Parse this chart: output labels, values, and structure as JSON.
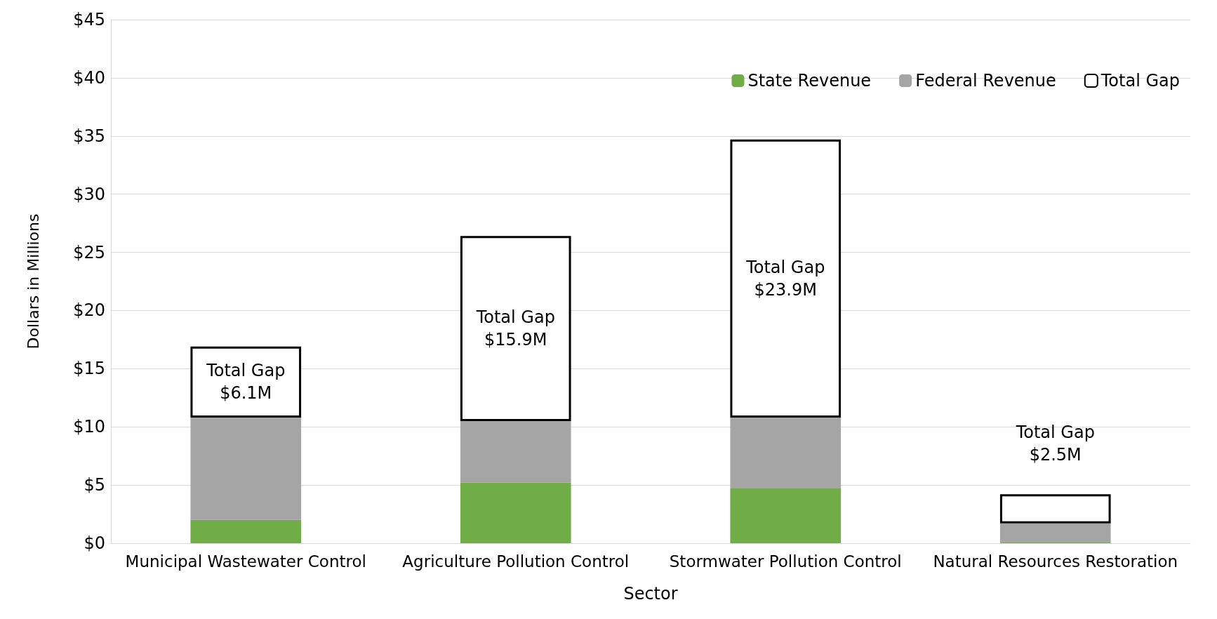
{
  "chart_data": {
    "type": "bar",
    "stacked": true,
    "xlabel": "Sector",
    "ylabel": "Dollars in Millions",
    "categories": [
      "Municipal Wastewater Control",
      "Agriculture Pollution Control",
      "Stormwater Pollution Control",
      "Natural Resources Restoration"
    ],
    "series": [
      {
        "name": "State Revenue",
        "color": "#70ad47",
        "values": [
          2.0,
          5.2,
          4.7,
          0.1
        ]
      },
      {
        "name": "Federal Revenue",
        "color": "#a5a5a5",
        "values": [
          8.8,
          5.3,
          6.1,
          1.6
        ]
      },
      {
        "name": "Total Gap",
        "color": "#ffffff",
        "values": [
          6.1,
          15.9,
          23.9,
          2.5
        ],
        "value_labels": [
          "Total Gap\n$6.1M",
          "Total Gap\n$15.9M",
          "Total Gap\n$23.9M",
          "Total Gap\n$2.5M"
        ]
      }
    ],
    "ylim": [
      0,
      45
    ],
    "yticks": [
      {
        "value": 0,
        "label": "$0"
      },
      {
        "value": 5,
        "label": "$5"
      },
      {
        "value": 10,
        "label": "$10"
      },
      {
        "value": 15,
        "label": "$15"
      },
      {
        "value": 20,
        "label": "$20"
      },
      {
        "value": 25,
        "label": "$25"
      },
      {
        "value": 30,
        "label": "$30"
      },
      {
        "value": 35,
        "label": "$35"
      },
      {
        "value": 40,
        "label": "$40"
      },
      {
        "value": 45,
        "label": "$45"
      }
    ],
    "grid": "y",
    "legend": "top right"
  }
}
